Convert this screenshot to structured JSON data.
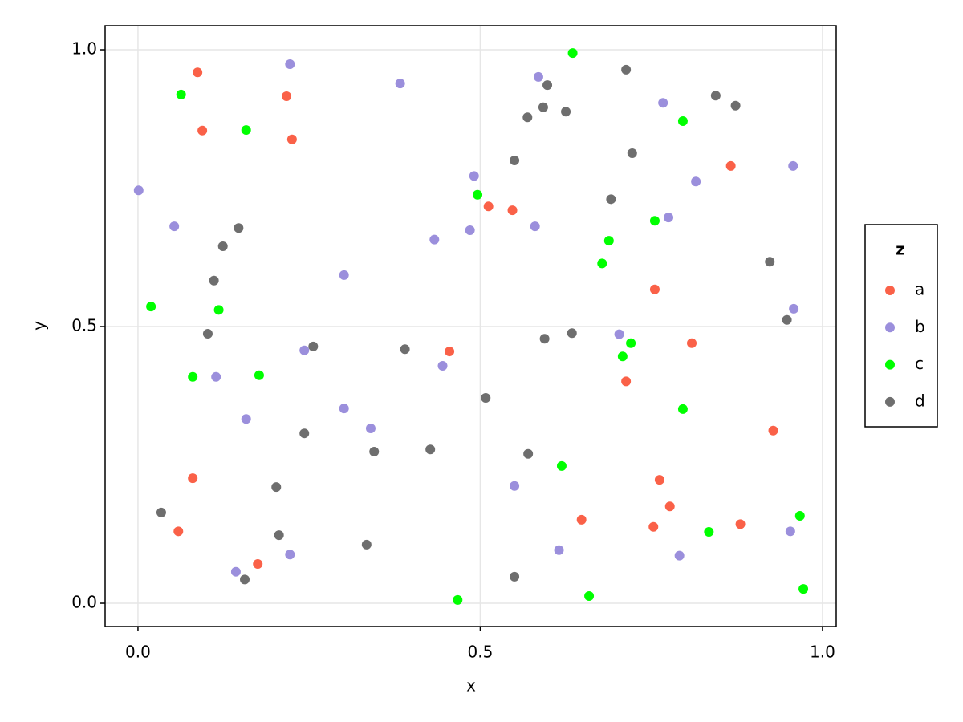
{
  "chart_data": {
    "type": "scatter",
    "x_label": "x",
    "y_label": "y",
    "legend_title": "z",
    "legend_position": "right",
    "grid": true,
    "xlim": [
      -0.048,
      1.02
    ],
    "ylim": [
      -0.042,
      1.0435
    ],
    "xticks": [
      {
        "value": 0,
        "label": "0.0"
      },
      {
        "value": 0.5,
        "label": "0.5"
      },
      {
        "value": 1,
        "label": "1.0"
      }
    ],
    "yticks": [
      {
        "value": 0,
        "label": "0.0"
      },
      {
        "value": 0.5,
        "label": "0.5"
      },
      {
        "value": 1,
        "label": "1.0"
      }
    ],
    "series": [
      {
        "name": "a",
        "color": "#fa6148",
        "x": [
          0.087,
          0.094,
          0.217,
          0.225,
          0.512,
          0.547,
          0.455,
          0.866,
          0.755,
          0.809,
          0.713,
          0.928,
          0.08,
          0.059,
          0.175,
          0.762,
          0.777,
          0.648,
          0.753,
          0.88
        ],
        "y": [
          0.959,
          0.854,
          0.916,
          0.838,
          0.717,
          0.71,
          0.455,
          0.79,
          0.567,
          0.47,
          0.401,
          0.312,
          0.226,
          0.13,
          0.071,
          0.223,
          0.175,
          0.151,
          0.138,
          0.143
        ]
      },
      {
        "name": "b",
        "color": "#9b8fdc",
        "x": [
          0.222,
          0.383,
          0.001,
          0.053,
          0.433,
          0.485,
          0.491,
          0.585,
          0.767,
          0.957,
          0.815,
          0.775,
          0.58,
          0.301,
          0.958,
          0.243,
          0.445,
          0.114,
          0.703,
          0.158,
          0.301,
          0.34,
          0.55,
          0.615,
          0.953,
          0.791,
          0.222,
          0.143
        ],
        "y": [
          0.974,
          0.939,
          0.746,
          0.681,
          0.657,
          0.674,
          0.772,
          0.951,
          0.904,
          0.79,
          0.762,
          0.697,
          0.681,
          0.593,
          0.532,
          0.457,
          0.429,
          0.409,
          0.486,
          0.333,
          0.352,
          0.316,
          0.212,
          0.096,
          0.13,
          0.086,
          0.088,
          0.057
        ]
      },
      {
        "name": "c",
        "color": "#00ff00",
        "x": [
          0.063,
          0.158,
          0.635,
          0.796,
          0.496,
          0.755,
          0.688,
          0.678,
          0.019,
          0.118,
          0.08,
          0.177,
          0.72,
          0.708,
          0.796,
          0.619,
          0.834,
          0.967,
          0.467,
          0.659,
          0.972
        ],
        "y": [
          0.919,
          0.855,
          0.994,
          0.871,
          0.738,
          0.691,
          0.655,
          0.614,
          0.536,
          0.53,
          0.409,
          0.412,
          0.47,
          0.446,
          0.351,
          0.248,
          0.129,
          0.158,
          0.006,
          0.013,
          0.026
        ]
      },
      {
        "name": "d",
        "color": "#6e6e6e",
        "x": [
          0.713,
          0.598,
          0.592,
          0.569,
          0.625,
          0.844,
          0.873,
          0.55,
          0.722,
          0.691,
          0.147,
          0.124,
          0.111,
          0.923,
          0.948,
          0.102,
          0.256,
          0.39,
          0.594,
          0.634,
          0.508,
          0.243,
          0.345,
          0.427,
          0.57,
          0.202,
          0.034,
          0.206,
          0.334,
          0.156,
          0.55
        ],
        "y": [
          0.964,
          0.936,
          0.896,
          0.878,
          0.888,
          0.917,
          0.899,
          0.8,
          0.813,
          0.73,
          0.678,
          0.645,
          0.583,
          0.617,
          0.512,
          0.487,
          0.464,
          0.459,
          0.478,
          0.488,
          0.371,
          0.307,
          0.274,
          0.278,
          0.27,
          0.21,
          0.164,
          0.123,
          0.106,
          0.043,
          0.048
        ]
      }
    ]
  }
}
